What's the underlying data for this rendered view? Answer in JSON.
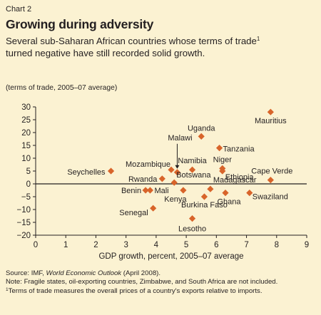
{
  "header": {
    "kicker": "Chart 2",
    "title": "Growing during adversity",
    "subtitle_text": "Several sub-Saharan African countries whose terms of trade",
    "subtitle_sup": "1",
    "subtitle_line2": "turned negative have still recorded solid growth.",
    "unit_note": "(terms of trade, 2005–07 average)"
  },
  "footer": {
    "source_prefix": "Source: IMF, ",
    "source_title": "World Economic Outlook",
    "source_suffix": " (April 2008).",
    "note": "Note: Fragile states, oil-exporting countries, Zimbabwe, and South Africa are not included.",
    "footnote_mark": "1",
    "footnote": "Terms of trade measures the overall prices of a country's exports relative to imports."
  },
  "colors": {
    "background": "#fbf2d2",
    "marker": "#d8642a",
    "axis": "#231f20",
    "text": "#231f20"
  },
  "chart_data": {
    "type": "scatter",
    "title": "",
    "xlabel": "GDP growth, percent, 2005–07 average",
    "ylabel": "",
    "xlim": [
      0,
      9
    ],
    "ylim": [
      -20,
      30
    ],
    "xticks": [
      0,
      1,
      2,
      3,
      4,
      5,
      6,
      7,
      8,
      9
    ],
    "yticks": [
      30,
      25,
      20,
      15,
      10,
      5,
      0,
      -5,
      -10,
      -15,
      -20
    ],
    "grid": false,
    "zero_line": true,
    "points": [
      {
        "label": "Mauritius",
        "x": 7.8,
        "y": 28
      },
      {
        "label": "Uganda",
        "x": 5.5,
        "y": 18.5
      },
      {
        "label": "Tanzania",
        "x": 6.1,
        "y": 14
      },
      {
        "label": "Seychelles",
        "x": 2.5,
        "y": 5
      },
      {
        "label": "Mozambique",
        "x": 4.5,
        "y": 5.5
      },
      {
        "label": "Malawi",
        "x": 4.7,
        "y": 4.5
      },
      {
        "label": "Namibia",
        "x": 5.2,
        "y": 5.5
      },
      {
        "label": "Niger",
        "x": 6.2,
        "y": 6
      },
      {
        "label": "Ethiopia",
        "x": 6.2,
        "y": 5
      },
      {
        "label": "Rwanda",
        "x": 4.2,
        "y": 2
      },
      {
        "label": "Botswana",
        "x": 4.6,
        "y": 0.5
      },
      {
        "label": "Cape Verde",
        "x": 7.8,
        "y": 1.5
      },
      {
        "label": "Benin",
        "x": 3.65,
        "y": -2.5
      },
      {
        "label": "Mali",
        "x": 3.8,
        "y": -2.5
      },
      {
        "label": "Kenya",
        "x": 4.9,
        "y": -2.5
      },
      {
        "label": "Madagascar",
        "x": 5.8,
        "y": -2
      },
      {
        "label": "Ghana",
        "x": 6.3,
        "y": -3.5
      },
      {
        "label": "Swaziland",
        "x": 7.1,
        "y": -3.5
      },
      {
        "label": "Burkina Faso",
        "x": 5.6,
        "y": -5
      },
      {
        "label": "Senegal",
        "x": 3.9,
        "y": -9.5
      },
      {
        "label": "Lesotho",
        "x": 5.2,
        "y": -13.5
      }
    ]
  }
}
